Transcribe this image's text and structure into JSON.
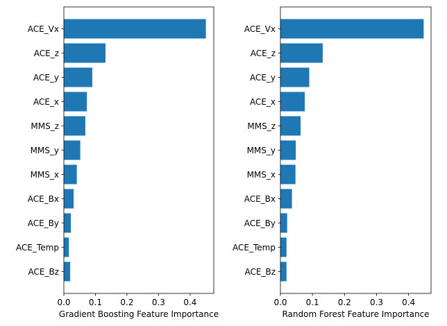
{
  "chart_data": [
    {
      "type": "bar",
      "orientation": "horizontal",
      "categories": [
        "ACE_Vx",
        "ACE_z",
        "ACE_y",
        "ACE_x",
        "MMS_z",
        "MMS_y",
        "MMS_x",
        "ACE_Bx",
        "ACE_By",
        "ACE_Temp",
        "ACE_Bz"
      ],
      "values": [
        0.45,
        0.132,
        0.09,
        0.073,
        0.068,
        0.052,
        0.041,
        0.031,
        0.022,
        0.016,
        0.02
      ],
      "xlabel": "Gradient Boosting Feature Importance",
      "ylabel": "",
      "title": "",
      "xlim": [
        0,
        0.475
      ],
      "xticks": [
        "0.0",
        "0.1",
        "0.2",
        "0.3",
        "0.4"
      ],
      "color": "#1f77b4",
      "grid": false
    },
    {
      "type": "bar",
      "orientation": "horizontal",
      "categories": [
        "ACE_Vx",
        "ACE_z",
        "ACE_y",
        "ACE_x",
        "MMS_z",
        "MMS_y",
        "MMS_x",
        "ACE_Bx",
        "ACE_By",
        "ACE_Temp",
        "ACE_Bz"
      ],
      "values": [
        0.447,
        0.132,
        0.09,
        0.076,
        0.063,
        0.048,
        0.047,
        0.036,
        0.021,
        0.019,
        0.019
      ],
      "xlabel": "Random Forest Feature Importance",
      "ylabel": "",
      "title": "",
      "xlim": [
        0,
        0.47
      ],
      "xticks": [
        "0.0",
        "0.1",
        "0.2",
        "0.3",
        "0.4"
      ],
      "color": "#1f77b4",
      "grid": false
    }
  ]
}
